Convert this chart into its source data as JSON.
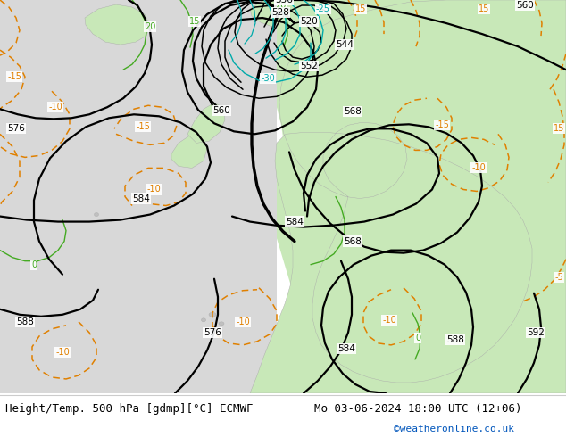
{
  "title_left": "Height/Temp. 500 hPa [gdmp][°C] ECMWF",
  "title_right": "Mo 03-06-2024 18:00 UTC (12+06)",
  "credit": "©weatheronline.co.uk",
  "bg_color": "#d8d8d8",
  "land_color": "#c8e8b8",
  "title_fontsize": 9,
  "credit_color": "#0055bb",
  "black_lw": 1.6,
  "thin_lw": 1.1,
  "orange_color": "#e08000",
  "cyan_color": "#00aaaa",
  "green_color": "#44aa22"
}
